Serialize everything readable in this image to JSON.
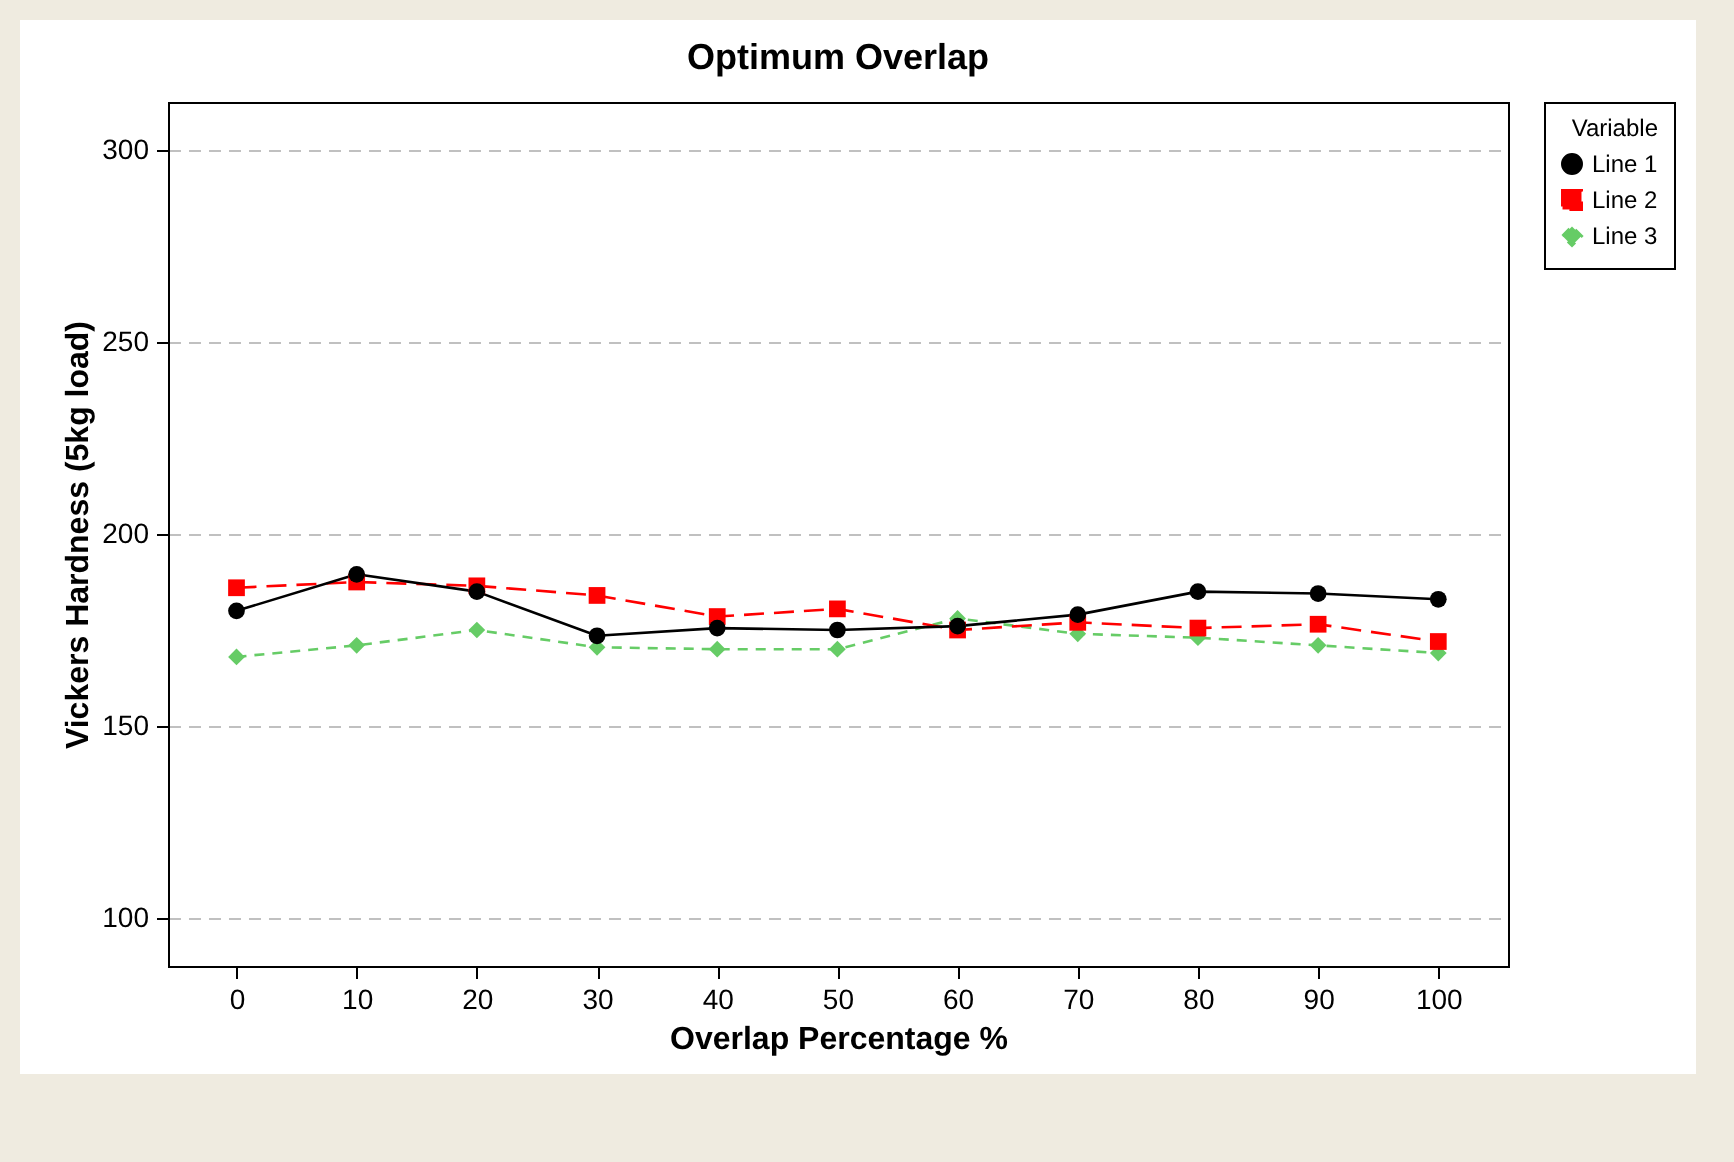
{
  "chart_data": {
    "type": "line",
    "title": "Optimum Overlap",
    "xlabel": "Overlap Percentage %",
    "ylabel": "Vickers Hardness (5kg load)",
    "legend_title": "Variable",
    "legend": "right",
    "x": [
      0,
      10,
      20,
      30,
      40,
      50,
      60,
      70,
      80,
      90,
      100
    ],
    "series": [
      {
        "name": "Line 1",
        "color": "#000000",
        "marker": "circle",
        "line_style": "solid",
        "values": [
          180,
          189.5,
          185,
          173.5,
          175.5,
          175,
          176,
          179,
          185,
          184.5,
          183
        ]
      },
      {
        "name": "Line 2",
        "color": "#ff0000",
        "marker": "square",
        "line_style": "dashed",
        "values": [
          186,
          187.5,
          186.5,
          184,
          178.5,
          180.5,
          175,
          177,
          175.5,
          176.5,
          172
        ]
      },
      {
        "name": "Line 3",
        "color": "#66cc66",
        "marker": "diamond",
        "line_style": "dotted",
        "values": [
          168,
          171,
          175,
          170.5,
          170,
          170,
          178,
          174,
          173,
          171,
          169
        ]
      }
    ],
    "xlim": [
      -5.7,
      105.8
    ],
    "xticks": [
      0,
      10,
      20,
      30,
      40,
      50,
      60,
      70,
      80,
      90,
      100
    ],
    "ylim": [
      87.5,
      312.5
    ],
    "yticks": [
      100,
      150,
      200,
      250,
      300
    ],
    "grid": "y"
  }
}
